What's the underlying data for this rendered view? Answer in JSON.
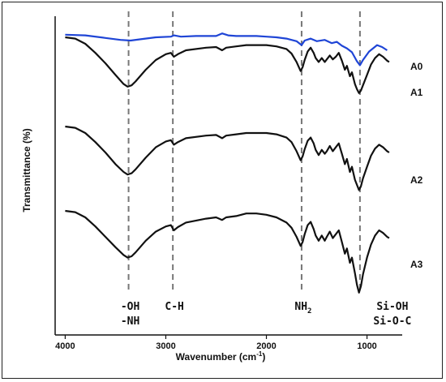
{
  "chart_data": {
    "type": "line",
    "xlabel": "Wavenumber (cm",
    "xlabel_sup": "-1",
    "xlabel_tail": ")",
    "ylabel": "Transmittance (%)",
    "xlim": [
      4100,
      650
    ],
    "x_reversed": true,
    "xticks": [
      4000,
      3000,
      2000,
      1000
    ],
    "xtick_labels": [
      "4000",
      "3000",
      "2000",
      "1000"
    ],
    "y_units": "arbitrary offset transmittance",
    "grid": false,
    "series": [
      {
        "name": "A0",
        "color": "#1f45d6",
        "offset": 0,
        "points": [
          [
            4000,
            0.06
          ],
          [
            3800,
            0.07
          ],
          [
            3600,
            0.11
          ],
          [
            3450,
            0.14
          ],
          [
            3350,
            0.15
          ],
          [
            3250,
            0.13
          ],
          [
            3100,
            0.1
          ],
          [
            2950,
            0.09
          ],
          [
            2920,
            0.07
          ],
          [
            2850,
            0.09
          ],
          [
            2700,
            0.08
          ],
          [
            2500,
            0.08
          ],
          [
            2440,
            0.04
          ],
          [
            2380,
            0.07
          ],
          [
            2300,
            0.08
          ],
          [
            2100,
            0.08
          ],
          [
            2000,
            0.09
          ],
          [
            1900,
            0.1
          ],
          [
            1800,
            0.12
          ],
          [
            1700,
            0.16
          ],
          [
            1650,
            0.22
          ],
          [
            1620,
            0.15
          ],
          [
            1560,
            0.12
          ],
          [
            1500,
            0.16
          ],
          [
            1420,
            0.14
          ],
          [
            1350,
            0.19
          ],
          [
            1300,
            0.17
          ],
          [
            1250,
            0.23
          ],
          [
            1200,
            0.27
          ],
          [
            1150,
            0.33
          ],
          [
            1100,
            0.47
          ],
          [
            1070,
            0.53
          ],
          [
            1040,
            0.45
          ],
          [
            980,
            0.32
          ],
          [
            900,
            0.22
          ],
          [
            850,
            0.25
          ],
          [
            800,
            0.3
          ]
        ]
      },
      {
        "name": "A1",
        "color": "#111111",
        "offset": 0,
        "points": [
          [
            4000,
            0.1
          ],
          [
            3900,
            0.12
          ],
          [
            3800,
            0.2
          ],
          [
            3700,
            0.34
          ],
          [
            3600,
            0.5
          ],
          [
            3500,
            0.68
          ],
          [
            3420,
            0.82
          ],
          [
            3380,
            0.86
          ],
          [
            3340,
            0.84
          ],
          [
            3300,
            0.78
          ],
          [
            3200,
            0.6
          ],
          [
            3100,
            0.45
          ],
          [
            3000,
            0.36
          ],
          [
            2950,
            0.34
          ],
          [
            2920,
            0.4
          ],
          [
            2880,
            0.36
          ],
          [
            2800,
            0.3
          ],
          [
            2600,
            0.26
          ],
          [
            2500,
            0.25
          ],
          [
            2440,
            0.3
          ],
          [
            2400,
            0.26
          ],
          [
            2300,
            0.24
          ],
          [
            2200,
            0.22
          ],
          [
            2100,
            0.22
          ],
          [
            2000,
            0.22
          ],
          [
            1900,
            0.24
          ],
          [
            1800,
            0.28
          ],
          [
            1750,
            0.35
          ],
          [
            1700,
            0.48
          ],
          [
            1660,
            0.62
          ],
          [
            1640,
            0.56
          ],
          [
            1620,
            0.45
          ],
          [
            1590,
            0.32
          ],
          [
            1560,
            0.26
          ],
          [
            1530,
            0.34
          ],
          [
            1510,
            0.42
          ],
          [
            1480,
            0.48
          ],
          [
            1450,
            0.42
          ],
          [
            1420,
            0.48
          ],
          [
            1400,
            0.44
          ],
          [
            1370,
            0.38
          ],
          [
            1340,
            0.44
          ],
          [
            1310,
            0.4
          ],
          [
            1280,
            0.34
          ],
          [
            1250,
            0.46
          ],
          [
            1220,
            0.6
          ],
          [
            1200,
            0.54
          ],
          [
            1170,
            0.7
          ],
          [
            1150,
            0.64
          ],
          [
            1120,
            0.82
          ],
          [
            1100,
            0.9
          ],
          [
            1080,
            0.96
          ],
          [
            1060,
            0.92
          ],
          [
            1040,
            0.84
          ],
          [
            1000,
            0.68
          ],
          [
            960,
            0.52
          ],
          [
            920,
            0.42
          ],
          [
            880,
            0.36
          ],
          [
            840,
            0.4
          ],
          [
            800,
            0.46
          ],
          [
            780,
            0.48
          ]
        ]
      },
      {
        "name": "A2",
        "color": "#111111",
        "offset": 1,
        "points": [
          [
            4000,
            0.1
          ],
          [
            3900,
            0.12
          ],
          [
            3800,
            0.2
          ],
          [
            3700,
            0.34
          ],
          [
            3600,
            0.5
          ],
          [
            3500,
            0.68
          ],
          [
            3420,
            0.8
          ],
          [
            3380,
            0.84
          ],
          [
            3340,
            0.82
          ],
          [
            3300,
            0.76
          ],
          [
            3200,
            0.58
          ],
          [
            3100,
            0.42
          ],
          [
            3000,
            0.33
          ],
          [
            2950,
            0.31
          ],
          [
            2920,
            0.38
          ],
          [
            2880,
            0.34
          ],
          [
            2800,
            0.28
          ],
          [
            2600,
            0.24
          ],
          [
            2500,
            0.23
          ],
          [
            2440,
            0.28
          ],
          [
            2400,
            0.24
          ],
          [
            2300,
            0.22
          ],
          [
            2200,
            0.2
          ],
          [
            2100,
            0.2
          ],
          [
            2000,
            0.2
          ],
          [
            1900,
            0.22
          ],
          [
            1800,
            0.27
          ],
          [
            1750,
            0.34
          ],
          [
            1700,
            0.48
          ],
          [
            1660,
            0.62
          ],
          [
            1640,
            0.56
          ],
          [
            1620,
            0.45
          ],
          [
            1590,
            0.32
          ],
          [
            1560,
            0.27
          ],
          [
            1530,
            0.36
          ],
          [
            1510,
            0.46
          ],
          [
            1480,
            0.54
          ],
          [
            1450,
            0.46
          ],
          [
            1420,
            0.52
          ],
          [
            1400,
            0.48
          ],
          [
            1370,
            0.4
          ],
          [
            1340,
            0.48
          ],
          [
            1310,
            0.42
          ],
          [
            1280,
            0.36
          ],
          [
            1250,
            0.52
          ],
          [
            1220,
            0.68
          ],
          [
            1200,
            0.6
          ],
          [
            1170,
            0.8
          ],
          [
            1150,
            0.72
          ],
          [
            1120,
            0.92
          ],
          [
            1100,
            1.0
          ],
          [
            1080,
            1.08
          ],
          [
            1060,
            1.02
          ],
          [
            1040,
            0.9
          ],
          [
            1000,
            0.72
          ],
          [
            960,
            0.55
          ],
          [
            920,
            0.44
          ],
          [
            880,
            0.38
          ],
          [
            840,
            0.42
          ],
          [
            800,
            0.48
          ],
          [
            780,
            0.5
          ]
        ]
      },
      {
        "name": "A3",
        "color": "#111111",
        "offset": 2,
        "points": [
          [
            4000,
            0.1
          ],
          [
            3900,
            0.12
          ],
          [
            3800,
            0.2
          ],
          [
            3700,
            0.34
          ],
          [
            3600,
            0.5
          ],
          [
            3500,
            0.66
          ],
          [
            3420,
            0.78
          ],
          [
            3380,
            0.82
          ],
          [
            3340,
            0.8
          ],
          [
            3300,
            0.74
          ],
          [
            3200,
            0.56
          ],
          [
            3100,
            0.42
          ],
          [
            3000,
            0.34
          ],
          [
            2950,
            0.32
          ],
          [
            2920,
            0.4
          ],
          [
            2880,
            0.35
          ],
          [
            2800,
            0.28
          ],
          [
            2600,
            0.22
          ],
          [
            2500,
            0.2
          ],
          [
            2440,
            0.24
          ],
          [
            2400,
            0.2
          ],
          [
            2300,
            0.18
          ],
          [
            2200,
            0.14
          ],
          [
            2100,
            0.14
          ],
          [
            2000,
            0.16
          ],
          [
            1900,
            0.2
          ],
          [
            1800,
            0.28
          ],
          [
            1750,
            0.36
          ],
          [
            1700,
            0.5
          ],
          [
            1660,
            0.64
          ],
          [
            1640,
            0.58
          ],
          [
            1620,
            0.46
          ],
          [
            1590,
            0.32
          ],
          [
            1560,
            0.27
          ],
          [
            1530,
            0.38
          ],
          [
            1510,
            0.48
          ],
          [
            1480,
            0.56
          ],
          [
            1450,
            0.48
          ],
          [
            1420,
            0.56
          ],
          [
            1400,
            0.5
          ],
          [
            1370,
            0.42
          ],
          [
            1340,
            0.52
          ],
          [
            1310,
            0.46
          ],
          [
            1280,
            0.4
          ],
          [
            1250,
            0.58
          ],
          [
            1220,
            0.76
          ],
          [
            1200,
            0.68
          ],
          [
            1170,
            0.9
          ],
          [
            1150,
            0.82
          ],
          [
            1120,
            1.06
          ],
          [
            1100,
            1.24
          ],
          [
            1080,
            1.36
          ],
          [
            1060,
            1.26
          ],
          [
            1040,
            1.08
          ],
          [
            1000,
            0.82
          ],
          [
            960,
            0.62
          ],
          [
            920,
            0.48
          ],
          [
            880,
            0.4
          ],
          [
            840,
            0.44
          ],
          [
            800,
            0.5
          ],
          [
            780,
            0.52
          ]
        ]
      }
    ],
    "marker_lines": [
      {
        "x": 3370,
        "labels": [
          "-OH",
          "-NH"
        ]
      },
      {
        "x": 2930,
        "labels": [
          "C-H"
        ]
      },
      {
        "x": 1650,
        "labels": [
          "NH",
          "2"
        ]
      },
      {
        "x": 1070,
        "labels": [
          "Si-OH",
          "Si-O-C"
        ]
      }
    ]
  }
}
